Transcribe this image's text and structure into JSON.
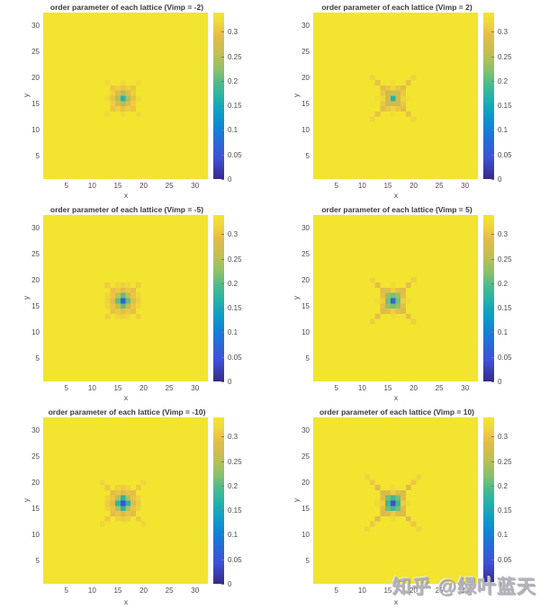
{
  "figure": {
    "background": "#ffffff",
    "rows": 3,
    "cols": 2
  },
  "watermark": {
    "text": "知乎 @绿叶蓝天",
    "color": "#b3b3b9"
  },
  "axes": {
    "xlabel": "x",
    "ylabel": "y",
    "xticks": [
      "5",
      "10",
      "15",
      "20",
      "25",
      "30"
    ],
    "yticks": [
      "5",
      "10",
      "15",
      "20",
      "25",
      "30"
    ],
    "xlim": [
      0.5,
      32.5
    ],
    "ylim": [
      0.5,
      32.5
    ]
  },
  "colorbar": {
    "ticks": [
      "0",
      "0.05",
      "0.1",
      "0.15",
      "0.2",
      "0.25",
      "0.3"
    ],
    "clim": [
      0,
      0.339
    ]
  },
  "colormap": {
    "name": "parula",
    "anchors": [
      [
        0.0,
        "#352a87"
      ],
      [
        0.125,
        "#3e51d8"
      ],
      [
        0.2,
        "#2e63d6"
      ],
      [
        0.3,
        "#1181d8"
      ],
      [
        0.4,
        "#0d9fc6"
      ],
      [
        0.5,
        "#28b4a5"
      ],
      [
        0.575,
        "#4cbb8b"
      ],
      [
        0.65,
        "#87c06d"
      ],
      [
        0.75,
        "#c0bf51"
      ],
      [
        0.85,
        "#e0bc49"
      ],
      [
        0.9,
        "#eec841"
      ],
      [
        0.95,
        "#f0da39"
      ],
      [
        1.0,
        "#f3e62c"
      ]
    ]
  },
  "ring_offsets": {
    "c": [
      [
        0,
        0
      ]
    ],
    "p1": [
      [
        1,
        0
      ],
      [
        -1,
        0
      ],
      [
        0,
        1
      ],
      [
        0,
        -1
      ]
    ],
    "d1": [
      [
        1,
        1
      ],
      [
        1,
        -1
      ],
      [
        -1,
        1
      ],
      [
        -1,
        -1
      ]
    ],
    "p2": [
      [
        2,
        0
      ],
      [
        -2,
        0
      ],
      [
        0,
        2
      ],
      [
        0,
        -2
      ]
    ],
    "k": [
      [
        2,
        1
      ],
      [
        2,
        -1
      ],
      [
        -2,
        1
      ],
      [
        -2,
        -1
      ],
      [
        1,
        2
      ],
      [
        1,
        -2
      ],
      [
        -1,
        2
      ],
      [
        -1,
        -2
      ]
    ],
    "d2": [
      [
        2,
        2
      ],
      [
        2,
        -2
      ],
      [
        -2,
        2
      ],
      [
        -2,
        -2
      ]
    ],
    "p3": [
      [
        3,
        0
      ],
      [
        -3,
        0
      ],
      [
        0,
        3
      ],
      [
        0,
        -3
      ]
    ],
    "k31": [
      [
        3,
        1
      ],
      [
        3,
        -1
      ],
      [
        -3,
        1
      ],
      [
        -3,
        -1
      ],
      [
        1,
        3
      ],
      [
        1,
        -3
      ],
      [
        -1,
        3
      ],
      [
        -1,
        -3
      ]
    ],
    "d3": [
      [
        3,
        3
      ],
      [
        3,
        -3
      ],
      [
        -3,
        3
      ],
      [
        -3,
        -3
      ]
    ],
    "d4": [
      [
        4,
        4
      ],
      [
        4,
        -4
      ],
      [
        -4,
        4
      ],
      [
        -4,
        -4
      ]
    ],
    "d5": [
      [
        5,
        5
      ],
      [
        5,
        -5
      ],
      [
        -5,
        5
      ],
      [
        -5,
        -5
      ]
    ]
  },
  "chart_data": [
    {
      "type": "heatmap",
      "title": "order parameter of each lattice (Vimp = -2)",
      "vimp": -2,
      "grid": 32,
      "background_value": 0.3355,
      "impurity_site": [
        16,
        16
      ],
      "rings": {
        "c": 0.165,
        "p1": 0.245,
        "d1": 0.287,
        "p2": 0.298,
        "k": 0.312,
        "d2": 0.302,
        "p3": 0.32,
        "d3": 0.322
      }
    },
    {
      "type": "heatmap",
      "title": "order parameter of each lattice (Vimp = 2)",
      "vimp": 2,
      "grid": 32,
      "background_value": 0.3355,
      "impurity_site": [
        16,
        16
      ],
      "rings": {
        "c": 0.165,
        "p1": 0.27,
        "d1": 0.266,
        "p2": 0.318,
        "k": 0.303,
        "d2": 0.29,
        "p3": 0.326,
        "d3": 0.297,
        "d4": 0.315
      }
    },
    {
      "type": "heatmap",
      "title": "order parameter of each lattice (Vimp = -5)",
      "vimp": -5,
      "grid": 32,
      "background_value": 0.3355,
      "impurity_site": [
        16,
        16
      ],
      "rings": {
        "c": 0.068,
        "p1": 0.205,
        "d1": 0.257,
        "p2": 0.29,
        "k": 0.304,
        "d2": 0.295,
        "p3": 0.314,
        "k31": 0.318,
        "d3": 0.31
      }
    },
    {
      "type": "heatmap",
      "title": "order parameter of each lattice (Vimp = 5)",
      "vimp": 5,
      "grid": 32,
      "background_value": 0.3355,
      "impurity_site": [
        16,
        16
      ],
      "rings": {
        "c": 0.075,
        "p1": 0.213,
        "d1": 0.232,
        "p2": 0.312,
        "k": 0.292,
        "d2": 0.283,
        "p3": 0.324,
        "d3": 0.293,
        "d4": 0.312
      }
    },
    {
      "type": "heatmap",
      "title": "order parameter of each lattice (Vimp = -10)",
      "vimp": -10,
      "grid": 32,
      "background_value": 0.3355,
      "impurity_site": [
        16,
        16
      ],
      "rings": {
        "c": 0.042,
        "p1": 0.172,
        "d1": 0.25,
        "p2": 0.286,
        "k": 0.3,
        "d2": 0.29,
        "p3": 0.308,
        "k31": 0.315,
        "d3": 0.306,
        "d4": 0.318
      }
    },
    {
      "type": "heatmap",
      "title": "order parameter of each lattice (Vimp = 10)",
      "vimp": 10,
      "grid": 32,
      "background_value": 0.3355,
      "impurity_site": [
        16,
        16
      ],
      "rings": {
        "c": 0.04,
        "p1": 0.185,
        "d1": 0.212,
        "p2": 0.308,
        "k": 0.288,
        "d2": 0.278,
        "p3": 0.322,
        "d3": 0.287,
        "d4": 0.304,
        "d5": 0.316
      }
    }
  ]
}
